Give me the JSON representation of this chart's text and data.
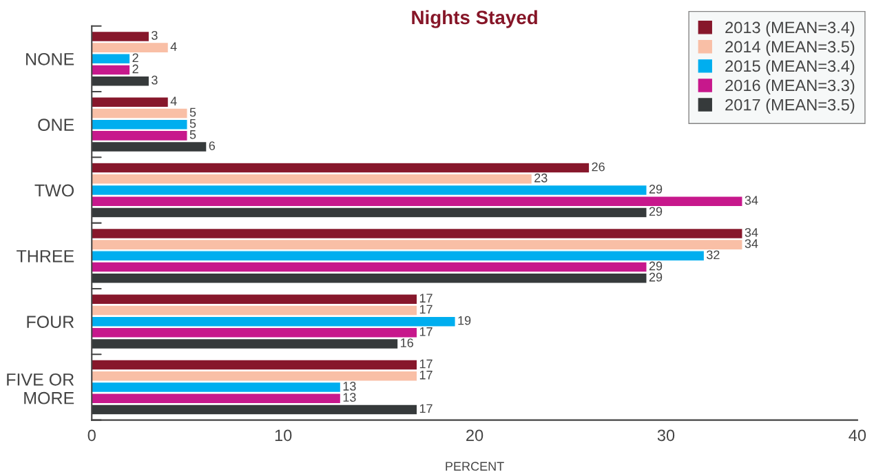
{
  "chart_data": {
    "type": "bar",
    "orientation": "horizontal",
    "title": "Nights Stayed",
    "xlabel": "PERCENT",
    "categories": [
      "NONE",
      "ONE",
      "TWO",
      "THREE",
      "FOUR",
      "FIVE OR\nMORE"
    ],
    "series": [
      {
        "name": "2013 (MEAN=3.4)",
        "color": "#87172b",
        "values": [
          3,
          4,
          26,
          34,
          17,
          17
        ]
      },
      {
        "name": "2014 (MEAN=3.5)",
        "color": "#f9bfa6",
        "values": [
          4,
          5,
          23,
          34,
          17,
          17
        ]
      },
      {
        "name": "2015 (MEAN=3.4)",
        "color": "#00aeef",
        "values": [
          2,
          5,
          29,
          32,
          19,
          13
        ]
      },
      {
        "name": "2016 (MEAN=3.3)",
        "color": "#c7188c",
        "values": [
          2,
          5,
          34,
          29,
          17,
          13
        ]
      },
      {
        "name": "2017 (MEAN=3.5)",
        "color": "#363a3b",
        "values": [
          3,
          6,
          29,
          29,
          16,
          17
        ]
      }
    ],
    "xlim": [
      0,
      40
    ],
    "xticks": [
      0,
      10,
      20,
      30,
      40
    ],
    "data_labels": true,
    "grid": false,
    "legend": "top right"
  }
}
